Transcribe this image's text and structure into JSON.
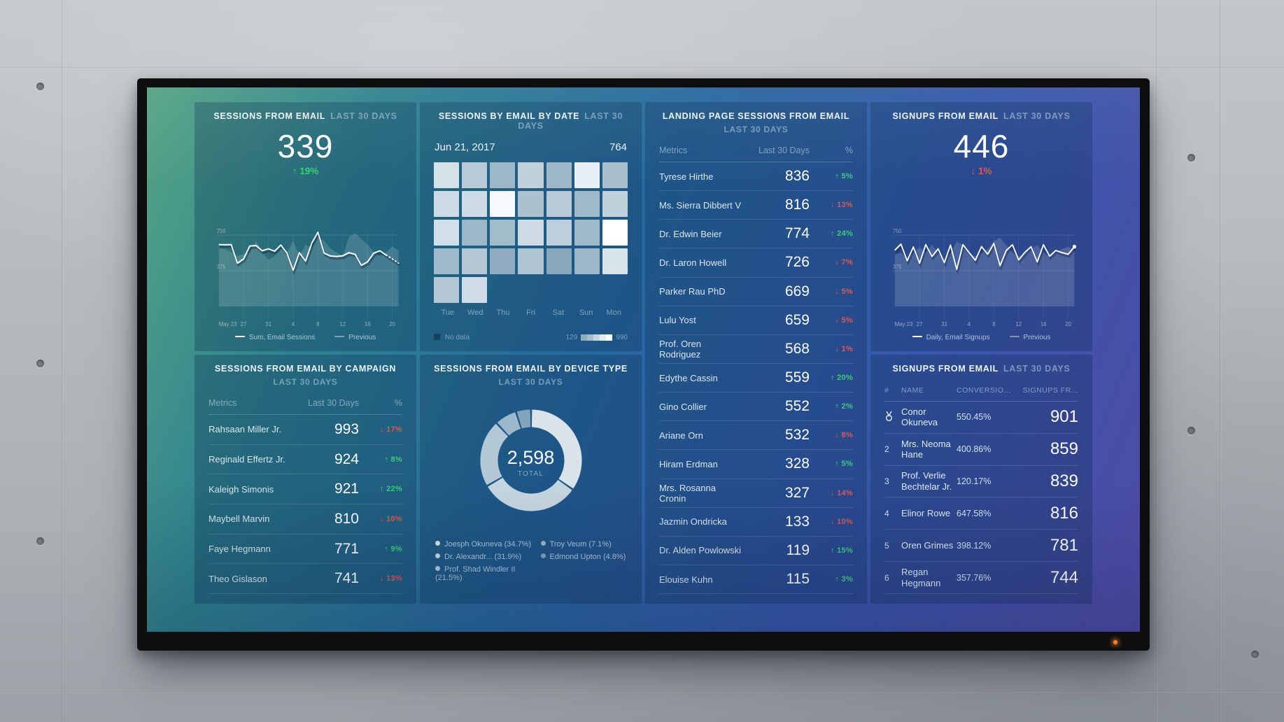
{
  "colors": {
    "green": "#35d173",
    "red": "#ea534d",
    "led": "#ff7f2a",
    "screen_gradient": [
      "#55a584",
      "#2f8390",
      "#27699f",
      "#3757ab",
      "#4f4ba6"
    ]
  },
  "panels": {
    "sessions_email": {
      "title": "SESSIONS FROM EMAIL",
      "range": "LAST 30 DAYS",
      "value": "339",
      "delta": "19%",
      "delta_dir": "up"
    },
    "sessions_by_date": {
      "title": "SESSIONS BY EMAIL BY DATE",
      "range": "LAST 30 DAYS",
      "no_data": "No data"
    },
    "landing_sessions": {
      "title": "LANDING PAGE SESSIONS FROM EMAIL",
      "range": "LAST 30 DAYS",
      "columns": [
        "Metrics",
        "Last 30 Days",
        "%"
      ],
      "rows": [
        {
          "name": "Tyrese Hirthe",
          "value": "836",
          "dir": "up",
          "pct": "5%"
        },
        {
          "name": "Ms. Sierra Dibbert V",
          "value": "816",
          "dir": "down",
          "pct": "13%"
        },
        {
          "name": "Dr. Edwin Beier",
          "value": "774",
          "dir": "up",
          "pct": "24%"
        },
        {
          "name": "Dr. Laron Howell",
          "value": "726",
          "dir": "down",
          "pct": "7%"
        },
        {
          "name": "Parker Rau PhD",
          "value": "669",
          "dir": "down",
          "pct": "5%"
        },
        {
          "name": "Lulu Yost",
          "value": "659",
          "dir": "down",
          "pct": "5%"
        },
        {
          "name": "Prof. Oren Rodriguez",
          "value": "568",
          "dir": "down",
          "pct": "1%"
        },
        {
          "name": "Edythe Cassin",
          "value": "559",
          "dir": "up",
          "pct": "20%"
        },
        {
          "name": "Gino Collier",
          "value": "552",
          "dir": "up",
          "pct": "2%"
        },
        {
          "name": "Ariane Orn",
          "value": "532",
          "dir": "down",
          "pct": "8%"
        },
        {
          "name": "Hiram Erdman",
          "value": "328",
          "dir": "up",
          "pct": "5%"
        },
        {
          "name": "Mrs. Rosanna Cronin",
          "value": "327",
          "dir": "down",
          "pct": "14%"
        },
        {
          "name": "Jazmin Ondricka",
          "value": "133",
          "dir": "down",
          "pct": "10%"
        },
        {
          "name": "Dr. Alden Powlowski",
          "value": "119",
          "dir": "up",
          "pct": "15%"
        },
        {
          "name": "Elouise Kuhn",
          "value": "115",
          "dir": "up",
          "pct": "3%"
        }
      ]
    },
    "signups_scorecard": {
      "title": "SIGNUPS FROM EMAIL",
      "range": "LAST 30 DAYS",
      "value": "446",
      "delta": "1%",
      "delta_dir": "down"
    },
    "campaign_sessions": {
      "title": "SESSIONS FROM EMAIL BY CAMPAIGN",
      "range": "LAST 30 DAYS",
      "columns": [
        "Metrics",
        "Last 30 Days",
        "%"
      ],
      "rows": [
        {
          "name": "Rahsaan Miller Jr.",
          "value": "993",
          "dir": "down",
          "pct": "17%"
        },
        {
          "name": "Reginald Effertz Jr.",
          "value": "924",
          "dir": "up",
          "pct": "8%"
        },
        {
          "name": "Kaleigh Simonis",
          "value": "921",
          "dir": "up",
          "pct": "22%"
        },
        {
          "name": "Maybell Marvin",
          "value": "810",
          "dir": "down",
          "pct": "10%"
        },
        {
          "name": "Faye Hegmann",
          "value": "771",
          "dir": "up",
          "pct": "9%"
        },
        {
          "name": "Theo Gislason",
          "value": "741",
          "dir": "down",
          "pct": "13%"
        }
      ]
    },
    "device_type": {
      "title": "SESSIONS FROM EMAIL BY DEVICE TYPE",
      "range": "LAST 30 DAYS"
    },
    "signups_table": {
      "title": "SIGNUPS FROM EMAIL",
      "range": "LAST 30 DAYS",
      "columns": [
        "#",
        "NAME",
        "CONVERSIO...",
        "SIGNUPS FR..."
      ],
      "rows": [
        {
          "rank": "1",
          "medal": true,
          "name": "Conor Okuneva",
          "conversion": "550.45%",
          "signups": "901"
        },
        {
          "rank": "2",
          "name": "Mrs. Neoma Hane",
          "conversion": "400.86%",
          "signups": "859"
        },
        {
          "rank": "3",
          "name": "Prof. Verlie Bechtelar Jr.",
          "conversion": "120.17%",
          "signups": "839"
        },
        {
          "rank": "4",
          "name": "Elinor Rowe",
          "conversion": "647.58%",
          "signups": "816"
        },
        {
          "rank": "5",
          "name": "Oren Grimes",
          "conversion": "398.12%",
          "signups": "781"
        },
        {
          "rank": "6",
          "name": "Regan Hegmann",
          "conversion": "357.76%",
          "signups": "744"
        }
      ]
    }
  },
  "chart_data": [
    {
      "id": "sessions_from_email",
      "type": "line",
      "x_tick_labels": [
        "May 23",
        "27",
        "31",
        "4",
        "8",
        "12",
        "16",
        "20"
      ],
      "x_tick_indices": [
        0,
        4,
        8,
        12,
        16,
        20,
        24,
        28
      ],
      "y_ticks": [
        750,
        375
      ],
      "ylim": [
        0,
        880
      ],
      "series": [
        {
          "name": "Sum, Email Sessions",
          "role": "current",
          "dashed_from": 27,
          "values": [
            650,
            648,
            650,
            455,
            500,
            635,
            640,
            585,
            605,
            580,
            645,
            560,
            380,
            565,
            475,
            665,
            780,
            560,
            530,
            525,
            532,
            565,
            548,
            432,
            468,
            560,
            585,
            540,
            500,
            455
          ]
        },
        {
          "name": "Previous",
          "role": "previous",
          "values": [
            610,
            605,
            570,
            530,
            550,
            570,
            690,
            565,
            490,
            530,
            605,
            570,
            690,
            530,
            650,
            610,
            730,
            690,
            610,
            570,
            530,
            730,
            770,
            710,
            650,
            570,
            530,
            570,
            630,
            590
          ]
        }
      ]
    },
    {
      "id": "signups_from_email",
      "type": "line",
      "x_tick_labels": [
        "May 23",
        "27",
        "31",
        "4",
        "8",
        "12",
        "16",
        "20"
      ],
      "x_tick_indices": [
        0,
        4,
        8,
        12,
        16,
        20,
        24,
        28
      ],
      "y_ticks": [
        750,
        375
      ],
      "ylim": [
        0,
        880
      ],
      "end_dot": true,
      "series": [
        {
          "name": "Daily, Email Signups",
          "role": "current",
          "values": [
            590,
            655,
            480,
            625,
            455,
            650,
            525,
            605,
            460,
            645,
            390,
            650,
            565,
            485,
            628,
            548,
            662,
            428,
            588,
            648,
            488,
            568,
            628,
            468,
            648,
            528,
            588,
            565,
            548,
            628
          ]
        },
        {
          "name": "Previous",
          "role": "previous",
          "values": [
            545,
            565,
            505,
            565,
            625,
            565,
            645,
            565,
            485,
            565,
            685,
            645,
            565,
            525,
            565,
            605,
            685,
            725,
            645,
            565,
            525,
            565,
            605,
            645,
            565,
            525,
            565,
            605,
            625,
            585
          ]
        }
      ]
    },
    {
      "id": "sessions_by_email_by_date",
      "type": "heatmap",
      "selected_date": "Jun 21, 2017",
      "selected_value": "764",
      "day_labels": [
        "Tue",
        "Wed",
        "Thu",
        "Fri",
        "Sat",
        "Sun",
        "Mon"
      ],
      "scale": {
        "min": "129",
        "max": "990",
        "swatches": [
          "#8fadbf",
          "#a7bfcd",
          "#c4d5df",
          "#e2ecf1",
          "#ffffff"
        ]
      },
      "rows": [
        [
          "#d4e1e9",
          "#b7cad6",
          "#9db7c6",
          "#c0d1dc",
          "#9db7c6",
          "#e8f0f5",
          "#a7bfcd"
        ],
        [
          "#cddbe5",
          "#cddbe5",
          "#f6fafc",
          "#abc1cf",
          "#b7cad6",
          "#9fb9c8",
          "#c0d1dc"
        ],
        [
          "#d1dfe8",
          "#9db7c6",
          "#a3bcca",
          "#cddbe5",
          "#bccfda",
          "#9fb9c8",
          "#ffffff"
        ],
        [
          "#a0bac9",
          "#b3c8d4",
          "#8fadbf",
          "#aec4d1",
          "#87a7bb",
          "#9db7c6",
          "#d6e3ea"
        ],
        [
          "#b3c8d4",
          "#cfdde6"
        ]
      ]
    },
    {
      "id": "sessions_by_device_type",
      "type": "pie",
      "total": "2,598",
      "total_label": "TOTAL",
      "slices": [
        {
          "label": "Joesph Okuneva (34.7%)",
          "pct": 34.7,
          "color": "#d8e3ea"
        },
        {
          "label": "Dr. Alexandr... (31.9%)",
          "pct": 31.9,
          "color": "#c6d6e1"
        },
        {
          "label": "Prof. Shad Windler II (21.5%)",
          "pct": 21.5,
          "color": "#b2c8d6"
        },
        {
          "label": "Troy Veum (7.1%)",
          "pct": 7.1,
          "color": "#9cb8cb"
        },
        {
          "label": "Edmond Upton (4.8%)",
          "pct": 4.8,
          "color": "#82a4bc"
        }
      ],
      "legend_display_order": [
        0,
        3,
        1,
        4,
        2
      ]
    }
  ]
}
